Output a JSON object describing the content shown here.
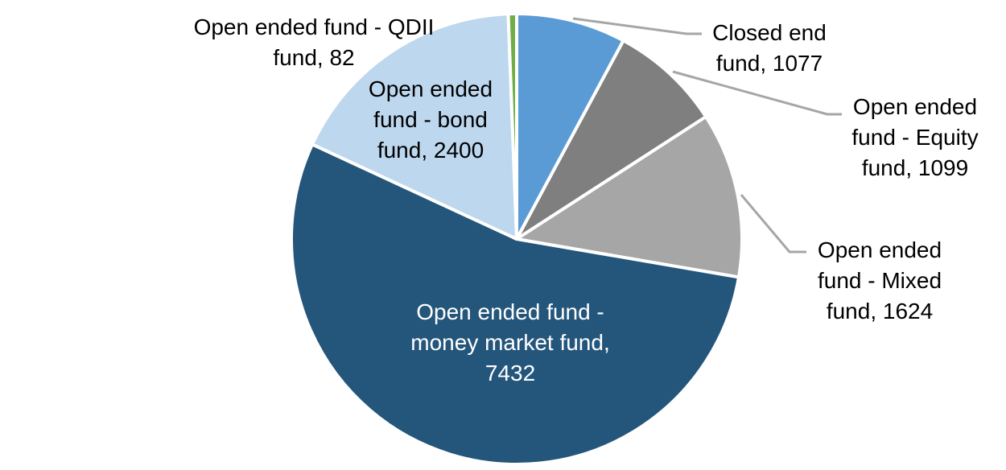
{
  "page": {
    "background_color": "#FFFFFF"
  },
  "chart_data": {
    "type": "pie",
    "title": "",
    "legend_position": "none",
    "direction": "clockwise",
    "start_angle_deg": 0,
    "total": 13714,
    "categories": [
      "Closed end fund",
      "Open ended fund - Equity fund",
      "Open ended fund - Mixed fund",
      "Open ended fund - money market fund",
      "Open ended fund - bond fund",
      "Open ended fund - QDII fund"
    ],
    "values": [
      1077,
      1099,
      1624,
      7432,
      2400,
      82
    ],
    "colors": [
      "#5B9BD5",
      "#7F7F7F",
      "#A6A6A6",
      "#24567B",
      "#BDD7EE",
      "#70AD47"
    ],
    "slices": [
      {
        "category": "Closed end fund",
        "value": 1077,
        "color": "#5B9BD5"
      },
      {
        "category": "Open ended fund - Equity fund",
        "value": 1099,
        "color": "#7F7F7F"
      },
      {
        "category": "Open ended fund - Mixed fund",
        "value": 1624,
        "color": "#A6A6A6"
      },
      {
        "category": "Open ended fund - money market fund",
        "value": 7432,
        "color": "#24567B"
      },
      {
        "category": "Open ended fund - bond fund",
        "value": 2400,
        "color": "#BDD7EE"
      },
      {
        "category": "Open ended fund - QDII fund",
        "value": 82,
        "color": "#70AD47"
      }
    ],
    "slice_border_color": "#FFFFFF",
    "leader_line_color": "#A6A6A6",
    "data_labels": {
      "closed_end": {
        "lines": [
          "Closed end",
          "fund, 1077"
        ],
        "text_color": "#000000"
      },
      "equity": {
        "lines": [
          "Open ended",
          "fund - Equity",
          "fund, 1099"
        ],
        "text_color": "#000000"
      },
      "mixed": {
        "lines": [
          "Open ended",
          "fund - Mixed",
          "fund, 1624"
        ],
        "text_color": "#000000"
      },
      "money_market": {
        "lines": [
          "Open ended fund -",
          "money market fund,",
          "7432"
        ],
        "text_color": "#FFFFFF"
      },
      "bond": {
        "lines": [
          "Open ended",
          "fund - bond",
          "fund, 2400"
        ],
        "text_color": "#000000"
      },
      "qdii": {
        "lines": [
          "Open ended fund - QDII",
          "fund, 82"
        ],
        "text_color": "#000000"
      }
    }
  }
}
